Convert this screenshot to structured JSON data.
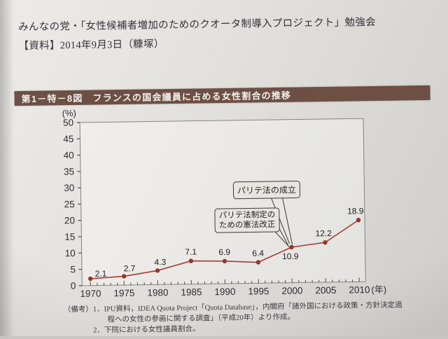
{
  "page": {
    "header_line1": "みんなの党・「女性候補者増加のためのクオータ制導入プロジェクト」勉強会",
    "header_line2": "【資料】2014年9月3日（糠塚）"
  },
  "figure": {
    "label": "第1－特－8図",
    "title": "フランスの国会議員に占める女性割合の推移",
    "title_bar_color": "#6d4f43",
    "notes": {
      "label": "（備考）",
      "items": [
        "1．IPU資料，IDEA Quota Project「Quota Database」，内閣府「諸外国における政策・方針決定過程への女性の参画に関する調査」（平成20年）より作成。",
        "2．下院における女性議員割合。"
      ]
    }
  },
  "chart_data": {
    "type": "line",
    "title": "フランスの国会議員に占める女性割合の推移",
    "x": [
      1970,
      1975,
      1980,
      1985,
      1990,
      1995,
      2000,
      2005,
      2010
    ],
    "values": [
      2.1,
      2.7,
      4.3,
      7.1,
      6.9,
      6.4,
      10.9,
      12.2,
      18.9
    ],
    "unit_y": "(%)",
    "unit_x": "(年)",
    "ylim": [
      0,
      50
    ],
    "ytick_step": 5,
    "grid": false,
    "legend": "none",
    "line_color": "#a63c31",
    "marker_color": "#9a342b",
    "annotations": [
      {
        "text": "パリテ法の成立",
        "target_year": 2000
      },
      {
        "text": "パリテ法制定の\nための憲法改正",
        "target_year": 2000
      }
    ]
  }
}
